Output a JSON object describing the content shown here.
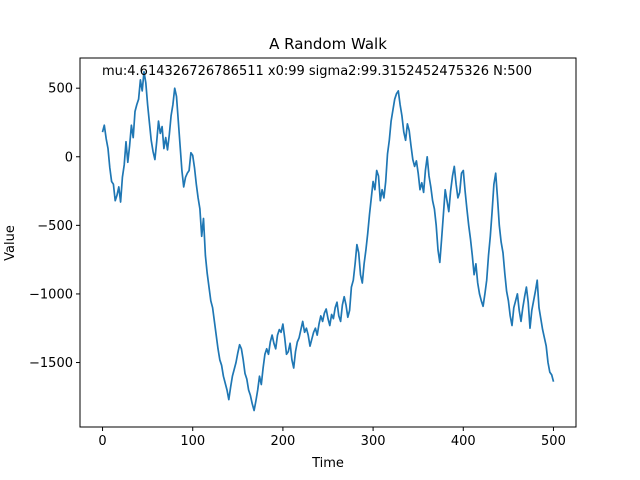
{
  "chart_data": {
    "type": "line",
    "title": "A Random Walk",
    "xlabel": "Time",
    "ylabel": "Value",
    "annotation": "mu:4.614326726786511 x0:99 sigma2:99.3152452475326 N:500",
    "xlim": [
      -25,
      525
    ],
    "ylim": [
      -1970,
      720
    ],
    "xticks": [
      0,
      100,
      200,
      300,
      400,
      500
    ],
    "yticks": [
      500,
      0,
      -500,
      -1000,
      -1500
    ],
    "ytick_labels": [
      "500",
      "0",
      "−500",
      "−1000",
      "−1500"
    ],
    "grid": false,
    "series": [
      {
        "color": "#1f77b4",
        "points": [
          [
            0,
            180
          ],
          [
            2,
            230
          ],
          [
            4,
            130
          ],
          [
            6,
            60
          ],
          [
            8,
            -80
          ],
          [
            10,
            -180
          ],
          [
            12,
            -200
          ],
          [
            14,
            -320
          ],
          [
            16,
            -280
          ],
          [
            18,
            -220
          ],
          [
            20,
            -330
          ],
          [
            22,
            -150
          ],
          [
            24,
            -60
          ],
          [
            26,
            110
          ],
          [
            28,
            -40
          ],
          [
            30,
            80
          ],
          [
            32,
            230
          ],
          [
            34,
            140
          ],
          [
            36,
            330
          ],
          [
            38,
            380
          ],
          [
            40,
            420
          ],
          [
            42,
            560
          ],
          [
            44,
            480
          ],
          [
            46,
            620
          ],
          [
            48,
            540
          ],
          [
            50,
            380
          ],
          [
            52,
            250
          ],
          [
            54,
            120
          ],
          [
            56,
            40
          ],
          [
            58,
            -20
          ],
          [
            60,
            110
          ],
          [
            62,
            260
          ],
          [
            64,
            170
          ],
          [
            66,
            220
          ],
          [
            68,
            60
          ],
          [
            70,
            140
          ],
          [
            72,
            50
          ],
          [
            74,
            160
          ],
          [
            76,
            300
          ],
          [
            78,
            380
          ],
          [
            80,
            500
          ],
          [
            82,
            440
          ],
          [
            84,
            260
          ],
          [
            86,
            80
          ],
          [
            88,
            -100
          ],
          [
            90,
            -220
          ],
          [
            92,
            -150
          ],
          [
            94,
            -120
          ],
          [
            96,
            -100
          ],
          [
            98,
            30
          ],
          [
            100,
            10
          ],
          [
            102,
            -80
          ],
          [
            104,
            -200
          ],
          [
            106,
            -300
          ],
          [
            108,
            -380
          ],
          [
            110,
            -580
          ],
          [
            112,
            -450
          ],
          [
            114,
            -720
          ],
          [
            116,
            -850
          ],
          [
            118,
            -950
          ],
          [
            120,
            -1050
          ],
          [
            122,
            -1100
          ],
          [
            124,
            -1200
          ],
          [
            126,
            -1300
          ],
          [
            128,
            -1400
          ],
          [
            130,
            -1480
          ],
          [
            132,
            -1520
          ],
          [
            134,
            -1600
          ],
          [
            136,
            -1650
          ],
          [
            138,
            -1700
          ],
          [
            140,
            -1770
          ],
          [
            142,
            -1680
          ],
          [
            144,
            -1600
          ],
          [
            146,
            -1550
          ],
          [
            148,
            -1500
          ],
          [
            150,
            -1430
          ],
          [
            152,
            -1370
          ],
          [
            154,
            -1400
          ],
          [
            156,
            -1480
          ],
          [
            158,
            -1580
          ],
          [
            160,
            -1620
          ],
          [
            162,
            -1700
          ],
          [
            164,
            -1740
          ],
          [
            166,
            -1800
          ],
          [
            168,
            -1850
          ],
          [
            170,
            -1780
          ],
          [
            172,
            -1700
          ],
          [
            174,
            -1600
          ],
          [
            176,
            -1660
          ],
          [
            178,
            -1540
          ],
          [
            180,
            -1440
          ],
          [
            182,
            -1400
          ],
          [
            184,
            -1440
          ],
          [
            186,
            -1350
          ],
          [
            188,
            -1300
          ],
          [
            190,
            -1360
          ],
          [
            192,
            -1400
          ],
          [
            194,
            -1300
          ],
          [
            196,
            -1260
          ],
          [
            198,
            -1280
          ],
          [
            200,
            -1220
          ],
          [
            202,
            -1320
          ],
          [
            204,
            -1440
          ],
          [
            206,
            -1420
          ],
          [
            208,
            -1360
          ],
          [
            210,
            -1480
          ],
          [
            212,
            -1540
          ],
          [
            214,
            -1420
          ],
          [
            216,
            -1350
          ],
          [
            218,
            -1320
          ],
          [
            220,
            -1260
          ],
          [
            222,
            -1200
          ],
          [
            224,
            -1280
          ],
          [
            226,
            -1250
          ],
          [
            228,
            -1300
          ],
          [
            230,
            -1380
          ],
          [
            232,
            -1330
          ],
          [
            234,
            -1280
          ],
          [
            236,
            -1250
          ],
          [
            238,
            -1300
          ],
          [
            240,
            -1220
          ],
          [
            242,
            -1160
          ],
          [
            244,
            -1200
          ],
          [
            246,
            -1140
          ],
          [
            248,
            -1110
          ],
          [
            250,
            -1180
          ],
          [
            252,
            -1230
          ],
          [
            254,
            -1150
          ],
          [
            256,
            -1180
          ],
          [
            258,
            -1100
          ],
          [
            260,
            -1060
          ],
          [
            262,
            -1160
          ],
          [
            264,
            -1200
          ],
          [
            266,
            -1080
          ],
          [
            268,
            -1020
          ],
          [
            270,
            -1080
          ],
          [
            272,
            -1170
          ],
          [
            274,
            -1120
          ],
          [
            276,
            -950
          ],
          [
            278,
            -900
          ],
          [
            280,
            -780
          ],
          [
            282,
            -640
          ],
          [
            284,
            -700
          ],
          [
            286,
            -860
          ],
          [
            288,
            -920
          ],
          [
            290,
            -780
          ],
          [
            292,
            -680
          ],
          [
            294,
            -560
          ],
          [
            296,
            -420
          ],
          [
            298,
            -300
          ],
          [
            300,
            -180
          ],
          [
            302,
            -240
          ],
          [
            304,
            -100
          ],
          [
            306,
            -140
          ],
          [
            308,
            -320
          ],
          [
            310,
            -240
          ],
          [
            312,
            -300
          ],
          [
            314,
            -180
          ],
          [
            316,
            20
          ],
          [
            318,
            120
          ],
          [
            320,
            260
          ],
          [
            322,
            340
          ],
          [
            324,
            420
          ],
          [
            326,
            460
          ],
          [
            328,
            480
          ],
          [
            330,
            380
          ],
          [
            332,
            300
          ],
          [
            334,
            180
          ],
          [
            336,
            120
          ],
          [
            338,
            240
          ],
          [
            340,
            190
          ],
          [
            342,
            80
          ],
          [
            344,
            -20
          ],
          [
            346,
            -70
          ],
          [
            348,
            -30
          ],
          [
            350,
            -120
          ],
          [
            352,
            -240
          ],
          [
            354,
            -190
          ],
          [
            356,
            -260
          ],
          [
            358,
            -100
          ],
          [
            360,
            0
          ],
          [
            362,
            -140
          ],
          [
            364,
            -220
          ],
          [
            366,
            -320
          ],
          [
            368,
            -380
          ],
          [
            370,
            -500
          ],
          [
            372,
            -680
          ],
          [
            374,
            -770
          ],
          [
            376,
            -600
          ],
          [
            378,
            -420
          ],
          [
            380,
            -240
          ],
          [
            382,
            -320
          ],
          [
            384,
            -400
          ],
          [
            386,
            -250
          ],
          [
            388,
            -140
          ],
          [
            390,
            -70
          ],
          [
            392,
            -200
          ],
          [
            394,
            -300
          ],
          [
            396,
            -260
          ],
          [
            398,
            -120
          ],
          [
            400,
            -100
          ],
          [
            402,
            -250
          ],
          [
            404,
            -380
          ],
          [
            406,
            -500
          ],
          [
            408,
            -600
          ],
          [
            410,
            -720
          ],
          [
            412,
            -860
          ],
          [
            414,
            -780
          ],
          [
            416,
            -920
          ],
          [
            418,
            -1000
          ],
          [
            420,
            -1050
          ],
          [
            422,
            -1090
          ],
          [
            424,
            -1000
          ],
          [
            426,
            -900
          ],
          [
            428,
            -720
          ],
          [
            430,
            -580
          ],
          [
            432,
            -400
          ],
          [
            434,
            -200
          ],
          [
            436,
            -120
          ],
          [
            438,
            -300
          ],
          [
            440,
            -500
          ],
          [
            442,
            -620
          ],
          [
            444,
            -700
          ],
          [
            446,
            -850
          ],
          [
            448,
            -980
          ],
          [
            450,
            -1050
          ],
          [
            452,
            -1160
          ],
          [
            454,
            -1230
          ],
          [
            456,
            -1100
          ],
          [
            458,
            -1050
          ],
          [
            460,
            -1000
          ],
          [
            462,
            -1120
          ],
          [
            464,
            -1200
          ],
          [
            466,
            -1100
          ],
          [
            468,
            -1020
          ],
          [
            470,
            -950
          ],
          [
            472,
            -1060
          ],
          [
            474,
            -1250
          ],
          [
            476,
            -1120
          ],
          [
            478,
            -1050
          ],
          [
            480,
            -980
          ],
          [
            482,
            -900
          ],
          [
            484,
            -1100
          ],
          [
            486,
            -1180
          ],
          [
            488,
            -1260
          ],
          [
            490,
            -1320
          ],
          [
            492,
            -1380
          ],
          [
            494,
            -1500
          ],
          [
            496,
            -1570
          ],
          [
            498,
            -1590
          ],
          [
            500,
            -1640
          ]
        ]
      }
    ]
  }
}
